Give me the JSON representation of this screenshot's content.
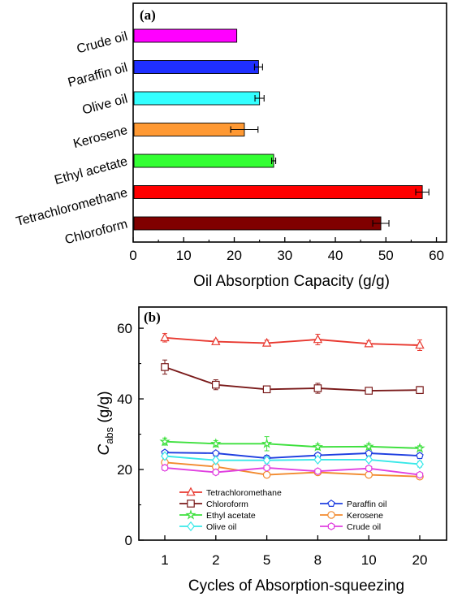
{
  "chart_data": [
    {
      "type": "bar",
      "orientation": "horizontal",
      "panel_label": "(a)",
      "categories": [
        "Crude oil",
        "Paraffin oil",
        "Olive oil",
        "Kerosene",
        "Ethyl acetate",
        "Tetrachloromethane",
        "Chloroform"
      ],
      "values": [
        20.5,
        24.8,
        25.0,
        22.0,
        27.8,
        57.2,
        49.0
      ],
      "errors": [
        0,
        0.8,
        0.9,
        2.7,
        0.4,
        1.3,
        1.6
      ],
      "colors": [
        "#ff00ff",
        "#1f2fff",
        "#33ffff",
        "#ff9933",
        "#33ff33",
        "#ff0000",
        "#800000"
      ],
      "xlabel": "Oil Absorption Capacity (g/g)",
      "xlim": [
        0,
        62
      ],
      "xticks": [
        "0",
        "10",
        "20",
        "30",
        "40",
        "50",
        "60"
      ]
    },
    {
      "type": "line",
      "panel_label": "(b)",
      "categories": [
        "1",
        "2",
        "5",
        "8",
        "10",
        "20"
      ],
      "xlabel": "Cycles of Absorption-squeezing",
      "ylabel_main": "C",
      "ylabel_sub": "abs",
      "ylabel_unit": " (g/g)",
      "ylim": [
        0,
        66
      ],
      "yticks": [
        "0",
        "20",
        "40",
        "60"
      ],
      "legend_position": "bottom",
      "series": [
        {
          "name": "Tetrachloromethane",
          "color": "#e8382f",
          "marker": "triangle",
          "values": [
            57.3,
            56.2,
            55.8,
            56.8,
            55.6,
            55.2
          ],
          "errors": [
            1.2,
            0.6,
            0.8,
            1.5,
            0.8,
            1.5
          ]
        },
        {
          "name": "Paraffin oil",
          "color": "#1f3fe0",
          "marker": "pentagon",
          "values": [
            24.8,
            24.6,
            23.2,
            24.0,
            24.6,
            23.9
          ],
          "errors": [
            0.6,
            0.5,
            0.8,
            0.7,
            0.6,
            0.7
          ]
        },
        {
          "name": "Chloroform",
          "color": "#7a1a1a",
          "marker": "square",
          "values": [
            49.0,
            44.0,
            42.7,
            43.0,
            42.3,
            42.5
          ],
          "errors": [
            2.0,
            1.4,
            0.6,
            1.4,
            0.8,
            1.0
          ]
        },
        {
          "name": "Kerosene",
          "color": "#f28a2e",
          "marker": "circle",
          "values": [
            22.0,
            20.8,
            18.5,
            19.2,
            18.5,
            18.0
          ],
          "errors": [
            0.8,
            0.8,
            0.6,
            0.7,
            0.6,
            0.6
          ]
        },
        {
          "name": "Ethyl acetate",
          "color": "#3de03d",
          "marker": "star",
          "values": [
            27.9,
            27.3,
            27.3,
            26.4,
            26.5,
            26.0
          ],
          "errors": [
            1.0,
            0.9,
            2.0,
            0.8,
            0.8,
            0.7
          ]
        },
        {
          "name": "Crude oil",
          "color": "#e040e0",
          "marker": "hexagon",
          "values": [
            20.5,
            19.2,
            20.5,
            19.5,
            20.3,
            18.5
          ],
          "errors": [
            0.8,
            0.6,
            0.7,
            0.6,
            0.7,
            0.6
          ]
        },
        {
          "name": "Olive oil",
          "color": "#38e8e8",
          "marker": "diamond",
          "values": [
            23.8,
            22.6,
            22.6,
            22.8,
            22.8,
            21.5
          ],
          "errors": [
            0.7,
            0.6,
            0.8,
            0.6,
            0.6,
            0.8
          ]
        }
      ]
    }
  ]
}
